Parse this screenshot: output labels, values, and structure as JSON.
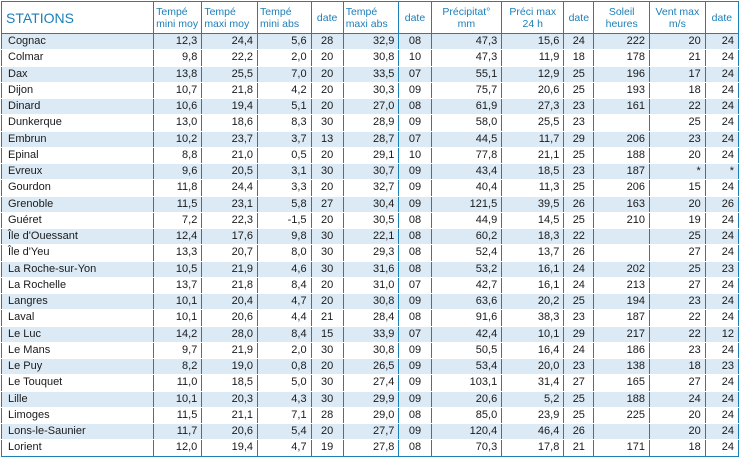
{
  "headers": [
    "STATIONS",
    "Tempé mini moy",
    "Tempé maxi moy",
    "Tempé mini abs",
    "date",
    "Tempé maxi abs",
    "date",
    "Précipitat° mm",
    "Préci max 24 h",
    "date",
    "Soleil heures",
    "Vent max m/s",
    "date"
  ],
  "rows": [
    [
      "Cognac",
      "12,3",
      "24,4",
      "5,6",
      "28",
      "32,9",
      "08",
      "47,3",
      "15,6",
      "24",
      "222",
      "20",
      "24"
    ],
    [
      "Colmar",
      "9,8",
      "22,2",
      "2,0",
      "20",
      "30,8",
      "10",
      "47,3",
      "11,9",
      "18",
      "178",
      "21",
      "24"
    ],
    [
      "Dax",
      "13,8",
      "25,5",
      "7,0",
      "20",
      "33,5",
      "07",
      "55,1",
      "12,9",
      "25",
      "196",
      "17",
      "24"
    ],
    [
      "Dijon",
      "10,7",
      "21,8",
      "4,2",
      "20",
      "30,3",
      "09",
      "75,7",
      "20,6",
      "25",
      "193",
      "18",
      "24"
    ],
    [
      "Dinard",
      "10,6",
      "19,4",
      "5,1",
      "20",
      "27,0",
      "08",
      "61,9",
      "27,3",
      "23",
      "161",
      "22",
      "24"
    ],
    [
      "Dunkerque",
      "13,0",
      "18,6",
      "8,3",
      "30",
      "28,9",
      "09",
      "58,0",
      "25,5",
      "23",
      "",
      "25",
      "24"
    ],
    [
      "Embrun",
      "10,2",
      "23,7",
      "3,7",
      "13",
      "28,7",
      "07",
      "44,5",
      "11,7",
      "29",
      "206",
      "23",
      "24"
    ],
    [
      "Epinal",
      "8,8",
      "21,0",
      "0,5",
      "20",
      "29,1",
      "10",
      "77,8",
      "21,1",
      "25",
      "188",
      "20",
      "24"
    ],
    [
      "Evreux",
      "9,6",
      "20,5",
      "3,1",
      "30",
      "30,7",
      "09",
      "43,4",
      "18,5",
      "23",
      "187",
      "*",
      "*"
    ],
    [
      "Gourdon",
      "11,8",
      "24,4",
      "3,3",
      "20",
      "32,7",
      "09",
      "40,4",
      "11,3",
      "25",
      "206",
      "15",
      "24"
    ],
    [
      "Grenoble",
      "11,5",
      "23,1",
      "5,8",
      "27",
      "30,4",
      "09",
      "121,5",
      "39,5",
      "26",
      "163",
      "20",
      "26"
    ],
    [
      "Guéret",
      "7,2",
      "22,3",
      "-1,5",
      "20",
      "30,5",
      "08",
      "44,9",
      "14,5",
      "25",
      "210",
      "19",
      "24"
    ],
    [
      "Île d'Ouessant",
      "12,4",
      "17,6",
      "9,8",
      "30",
      "22,1",
      "08",
      "60,2",
      "18,3",
      "22",
      "",
      "25",
      "24"
    ],
    [
      "Île d'Yeu",
      "13,3",
      "20,7",
      "8,0",
      "30",
      "29,3",
      "08",
      "52,4",
      "13,7",
      "26",
      "",
      "27",
      "24"
    ],
    [
      "La Roche-sur-Yon",
      "10,5",
      "21,9",
      "4,6",
      "30",
      "31,6",
      "08",
      "53,2",
      "16,1",
      "24",
      "202",
      "25",
      "23"
    ],
    [
      "La Rochelle",
      "13,7",
      "21,8",
      "8,4",
      "20",
      "31,0",
      "07",
      "42,7",
      "16,1",
      "24",
      "213",
      "27",
      "24"
    ],
    [
      "Langres",
      "10,1",
      "20,4",
      "4,7",
      "20",
      "30,8",
      "09",
      "63,6",
      "20,2",
      "25",
      "194",
      "23",
      "24"
    ],
    [
      "Laval",
      "10,1",
      "20,6",
      "4,4",
      "21",
      "28,4",
      "08",
      "91,6",
      "38,3",
      "23",
      "187",
      "22",
      "24"
    ],
    [
      "Le Luc",
      "14,2",
      "28,0",
      "8,4",
      "15",
      "33,9",
      "07",
      "42,4",
      "10,1",
      "29",
      "217",
      "22",
      "12"
    ],
    [
      "Le Mans",
      "9,7",
      "21,9",
      "2,0",
      "30",
      "30,8",
      "09",
      "50,5",
      "16,4",
      "24",
      "186",
      "23",
      "24"
    ],
    [
      "Le Puy",
      "8,2",
      "19,0",
      "0,8",
      "20",
      "26,5",
      "09",
      "53,4",
      "20,0",
      "23",
      "138",
      "18",
      "23"
    ],
    [
      "Le Touquet",
      "11,0",
      "18,5",
      "5,0",
      "30",
      "27,4",
      "09",
      "103,1",
      "31,4",
      "27",
      "165",
      "27",
      "24"
    ],
    [
      "Lille",
      "10,1",
      "20,3",
      "4,3",
      "30",
      "29,9",
      "09",
      "20,6",
      "5,2",
      "25",
      "188",
      "24",
      "24"
    ],
    [
      "Limoges",
      "11,5",
      "21,1",
      "7,1",
      "28",
      "29,0",
      "08",
      "85,0",
      "23,9",
      "25",
      "225",
      "20",
      "24"
    ],
    [
      "Lons-le-Saunier",
      "11,7",
      "20,6",
      "5,4",
      "20",
      "27,7",
      "09",
      "120,4",
      "46,4",
      "26",
      "",
      "20",
      "24"
    ],
    [
      "Lorient",
      "12,0",
      "19,4",
      "4,7",
      "19",
      "27,8",
      "08",
      "70,3",
      "17,8",
      "21",
      "171",
      "18",
      "24"
    ]
  ]
}
